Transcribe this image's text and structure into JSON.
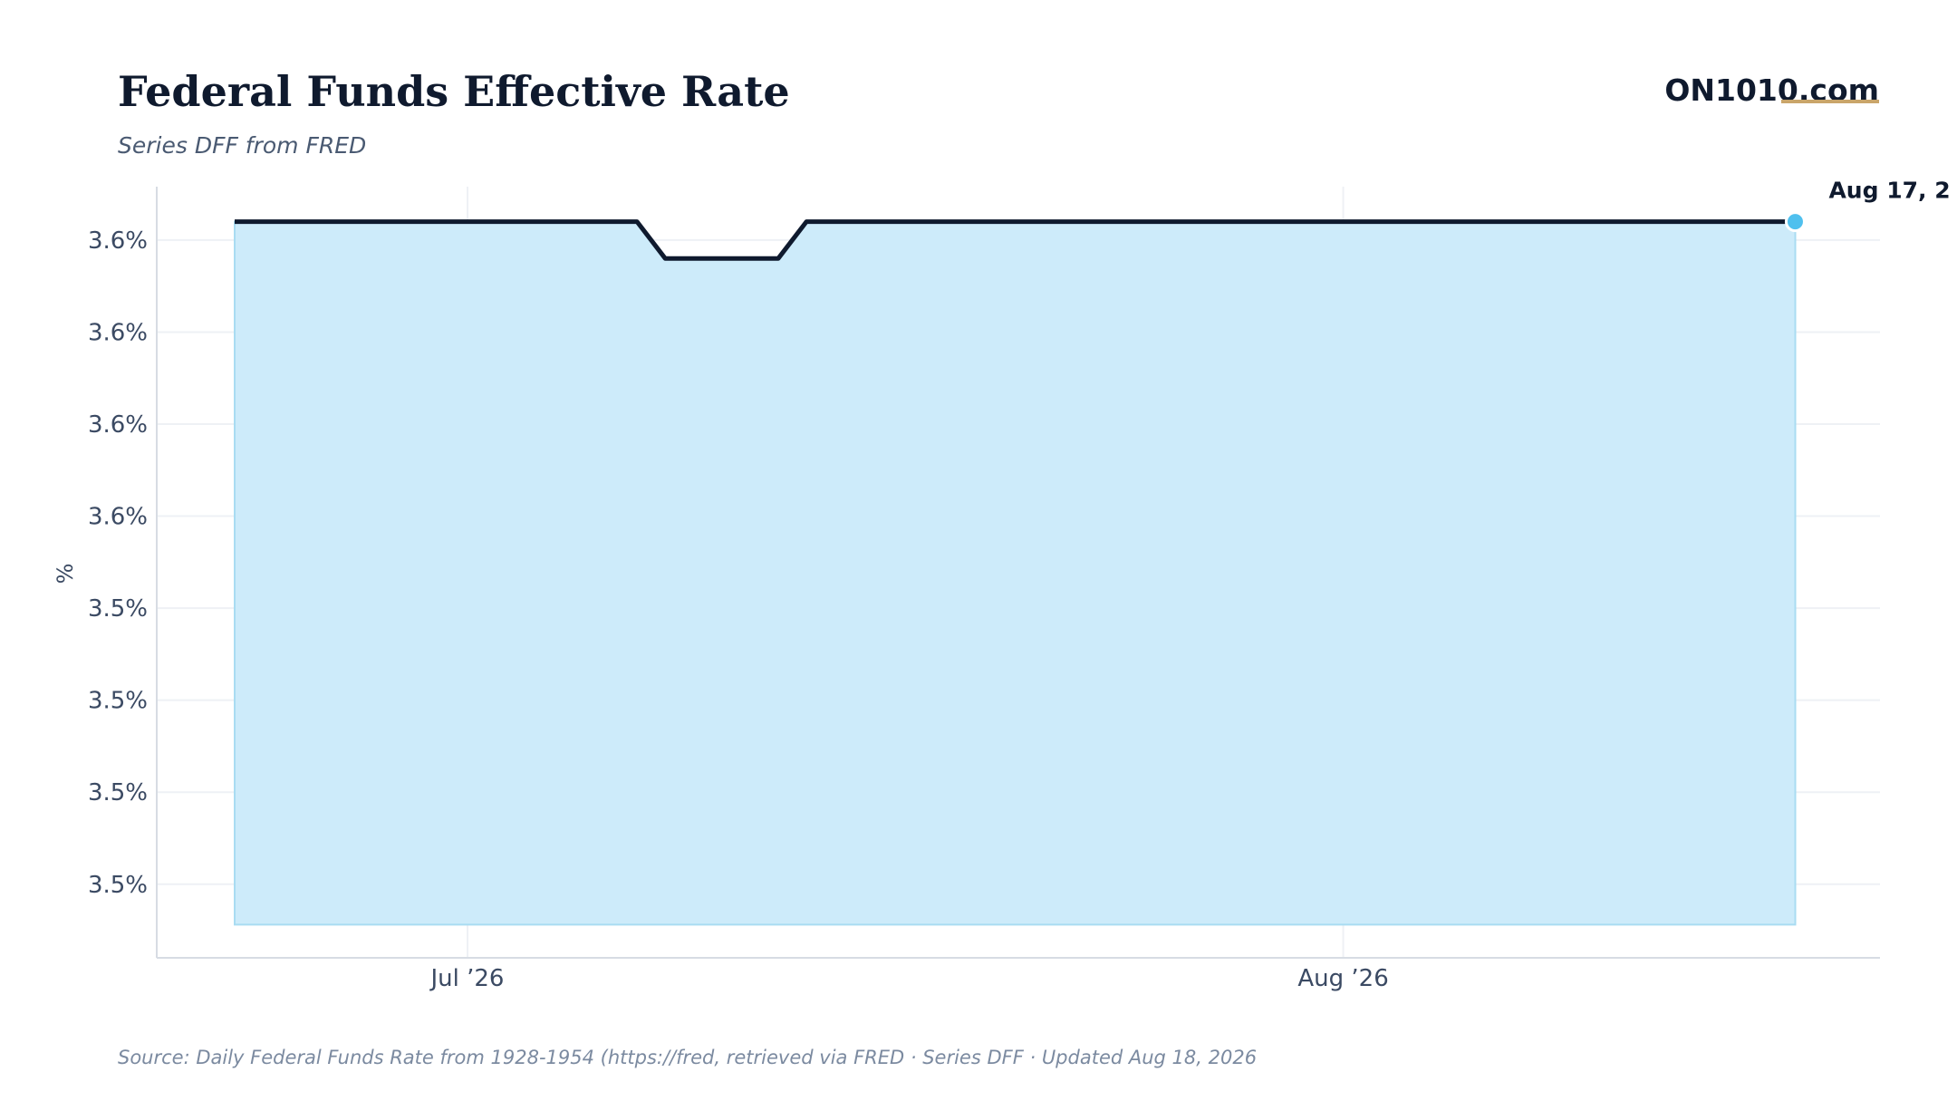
{
  "header": {
    "title": "Federal Funds Effective Rate",
    "subtitle": "Series DFF from FRED",
    "brand": "ON1010.com"
  },
  "footer": {
    "source": "Source:  Daily Federal Funds Rate from 1928-1954 (https://fred, retrieved via FRED · Series DFF · Updated Aug 18, 2026"
  },
  "colors": {
    "line": "#0f1a2e",
    "fill": "#cdebfa",
    "fill_edge": "#a9dcf2",
    "marker": "#4fc0ee",
    "grid": "#eef1f5",
    "axis": "#d7dce3",
    "brand_accent": "#c9a56a"
  },
  "chart_data": {
    "type": "area",
    "title": "Federal Funds Effective Rate",
    "subtitle": "Series DFF from FRED",
    "ylabel": "%",
    "xlabel": "",
    "x_ticks": [
      {
        "date": "2026-07-01",
        "label": "Jul ’26"
      },
      {
        "date": "2026-08-01",
        "label": "Aug ’26"
      }
    ],
    "y_ticks": [
      {
        "value": 3.5375,
        "label": "3.5%"
      },
      {
        "value": 3.5425,
        "label": "3.5%"
      },
      {
        "value": 3.5475,
        "label": "3.5%"
      },
      {
        "value": 3.5525,
        "label": "3.5%"
      },
      {
        "value": 3.5575,
        "label": "3.6%"
      },
      {
        "value": 3.5625,
        "label": "3.6%"
      },
      {
        "value": 3.5675,
        "label": "3.6%"
      },
      {
        "value": 3.5725,
        "label": "3.6%"
      }
    ],
    "xlim": [
      "2026-06-20",
      "2026-08-20"
    ],
    "ylim": [
      3.5335,
      3.5754
    ],
    "fill_base": 3.5353,
    "grid": true,
    "series": [
      {
        "points": [
          {
            "x": "2026-06-20",
            "y": 3.5735
          },
          {
            "x": "2026-07-07",
            "y": 3.5735
          },
          {
            "x": "2026-07-08",
            "y": 3.5715
          },
          {
            "x": "2026-07-12",
            "y": 3.5715
          },
          {
            "x": "2026-07-13",
            "y": 3.5735
          },
          {
            "x": "2026-08-17",
            "y": 3.5735
          }
        ]
      }
    ],
    "last_point": {
      "x": "2026-08-17",
      "y": 3.5735,
      "label": "Aug 17, 2"
    }
  }
}
